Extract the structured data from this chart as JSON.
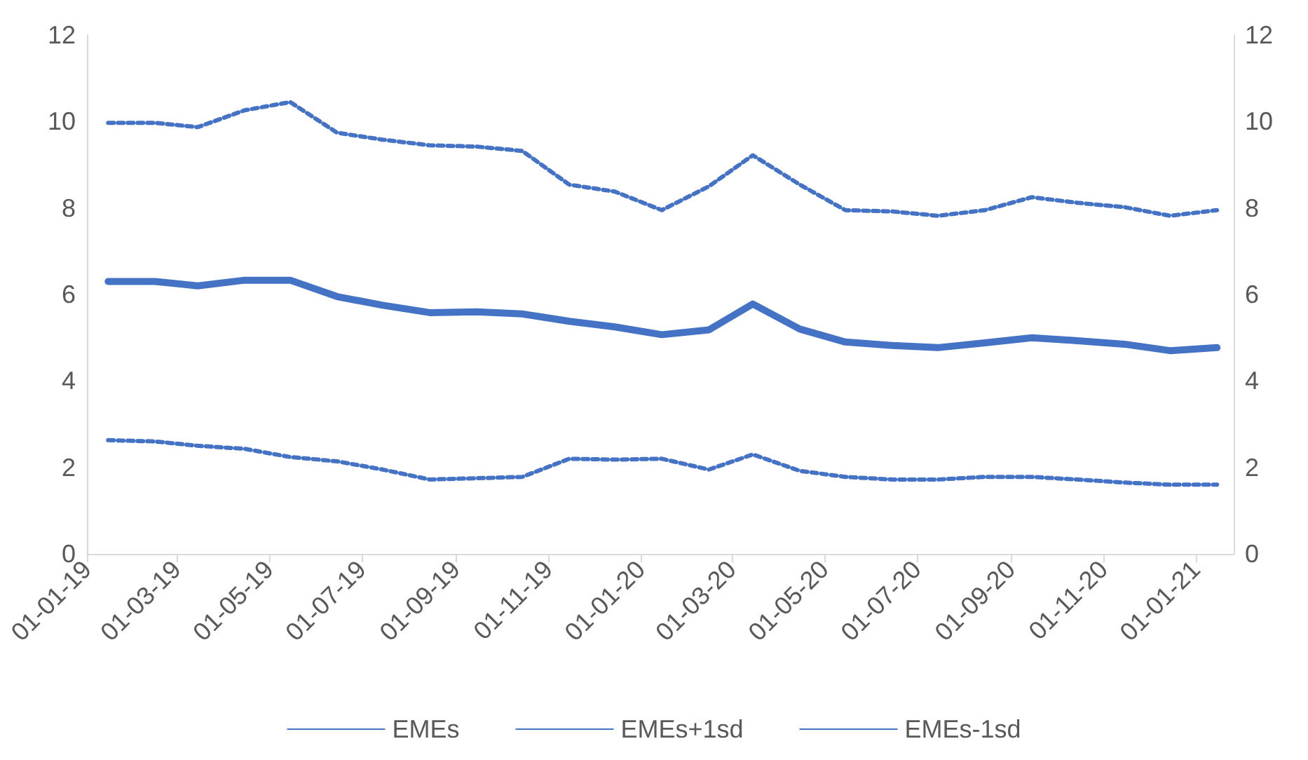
{
  "chart_data": {
    "type": "line",
    "x": [
      "2019-01-15",
      "2019-02-15",
      "2019-03-15",
      "2019-04-15",
      "2019-05-15",
      "2019-06-15",
      "2019-07-15",
      "2019-08-15",
      "2019-09-15",
      "2019-10-15",
      "2019-11-15",
      "2019-12-15",
      "2020-01-15",
      "2020-02-15",
      "2020-03-15",
      "2020-04-15",
      "2020-05-15",
      "2020-06-15",
      "2020-07-15",
      "2020-08-15",
      "2020-09-15",
      "2020-10-15",
      "2020-11-15",
      "2020-12-15",
      "2021-01-15"
    ],
    "series": [
      {
        "name": "EMEs",
        "color": "#4472c4",
        "line_style": "solid",
        "values": [
          6.3,
          6.3,
          6.2,
          6.33,
          6.33,
          5.95,
          5.75,
          5.58,
          5.6,
          5.55,
          5.38,
          5.25,
          5.07,
          5.18,
          5.78,
          5.2,
          4.9,
          4.82,
          4.77,
          4.88,
          5.0,
          4.93,
          4.85,
          4.7,
          4.77
        ]
      },
      {
        "name": "EMEs+1sd",
        "color": "#4472c4",
        "line_style": "dashed",
        "values": [
          9.97,
          9.97,
          9.87,
          10.26,
          10.45,
          9.74,
          9.58,
          9.45,
          9.42,
          9.32,
          8.54,
          8.38,
          7.95,
          8.5,
          9.22,
          8.54,
          7.95,
          7.92,
          7.82,
          7.95,
          8.25,
          8.12,
          8.02,
          7.82,
          7.95
        ]
      },
      {
        "name": "EMEs-1sd",
        "color": "#4472c4",
        "line_style": "dashed",
        "values": [
          2.63,
          2.6,
          2.5,
          2.43,
          2.24,
          2.14,
          1.95,
          1.72,
          1.75,
          1.78,
          2.2,
          2.18,
          2.2,
          1.95,
          2.3,
          1.92,
          1.78,
          1.72,
          1.72,
          1.78,
          1.78,
          1.72,
          1.65,
          1.6,
          1.6
        ]
      }
    ],
    "xlim": [
      "2019-01-01",
      "2021-01-26"
    ],
    "xticks": [
      {
        "value": "2019-01-01",
        "label": "01-01-19"
      },
      {
        "value": "2019-03-01",
        "label": "01-03-19"
      },
      {
        "value": "2019-05-01",
        "label": "01-05-19"
      },
      {
        "value": "2019-07-01",
        "label": "01-07-19"
      },
      {
        "value": "2019-09-01",
        "label": "01-09-19"
      },
      {
        "value": "2019-11-01",
        "label": "01-11-19"
      },
      {
        "value": "2020-01-01",
        "label": "01-01-20"
      },
      {
        "value": "2020-03-01",
        "label": "01-03-20"
      },
      {
        "value": "2020-05-01",
        "label": "01-05-20"
      },
      {
        "value": "2020-07-01",
        "label": "01-07-20"
      },
      {
        "value": "2020-09-01",
        "label": "01-09-20"
      },
      {
        "value": "2020-11-01",
        "label": "01-11-20"
      },
      {
        "value": "2021-01-01",
        "label": "01-01-21"
      }
    ],
    "ylim": [
      0,
      12
    ],
    "yticks": [
      0,
      2,
      4,
      6,
      8,
      10,
      12
    ],
    "y2lim": [
      0,
      12
    ],
    "y2ticks": [
      0,
      2,
      4,
      6,
      8,
      10,
      12
    ],
    "grid": false,
    "legend": "bottom",
    "marker": "none"
  }
}
